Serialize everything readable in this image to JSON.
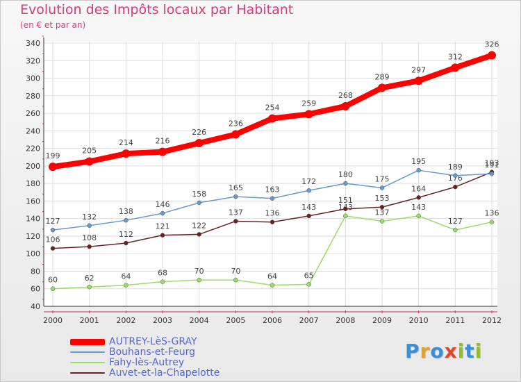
{
  "title": "Evolution des Impôts locaux par Habitant",
  "subtitle": "(en € et par an)",
  "logo": {
    "text": "Proxiti",
    "letters": [
      {
        "ch": "P",
        "color": "#3a8fd6"
      },
      {
        "ch": "r",
        "color": "#e6a21c"
      },
      {
        "ch": "o",
        "color": "#3a8fd6"
      },
      {
        "ch": "x",
        "color": "#e2452a"
      },
      {
        "ch": "i",
        "color": "#8fbf2b"
      },
      {
        "ch": "t",
        "color": "#3a8fd6"
      },
      {
        "ch": "i",
        "color": "#8fbf2b"
      }
    ]
  },
  "chart_data": {
    "type": "line",
    "title": "Evolution des Impôts locaux par Habitant",
    "subtitle": "(en € et par an)",
    "xlabel": "",
    "ylabel": "",
    "categories": [
      "2000",
      "2001",
      "2002",
      "2003",
      "2004",
      "2005",
      "2006",
      "2007",
      "2008",
      "2009",
      "2010",
      "2011",
      "2012"
    ],
    "ylim": [
      40,
      340
    ],
    "ytick_step": 20,
    "grid": true,
    "legend_position": "bottom-left",
    "series": [
      {
        "name": "AUTREY-LèS-GRAY",
        "color": "#ff0000",
        "values": [
          199,
          205,
          214,
          216,
          226,
          236,
          254,
          259,
          268,
          289,
          297,
          312,
          326
        ]
      },
      {
        "name": "Bouhans-et-Feurg",
        "color": "#6699cc",
        "values": [
          127,
          132,
          138,
          146,
          158,
          165,
          163,
          172,
          180,
          175,
          195,
          189,
          191
        ]
      },
      {
        "name": "Fahy-lès-Autrey",
        "color": "#99dd66",
        "values": [
          60,
          62,
          64,
          68,
          70,
          70,
          64,
          65,
          143,
          137,
          143,
          127,
          136
        ]
      },
      {
        "name": "Auvet-et-la-Chapelotte",
        "color": "#662222",
        "values": [
          106,
          108,
          112,
          121,
          122,
          137,
          136,
          143,
          151,
          153,
          164,
          176,
          193
        ]
      }
    ]
  }
}
